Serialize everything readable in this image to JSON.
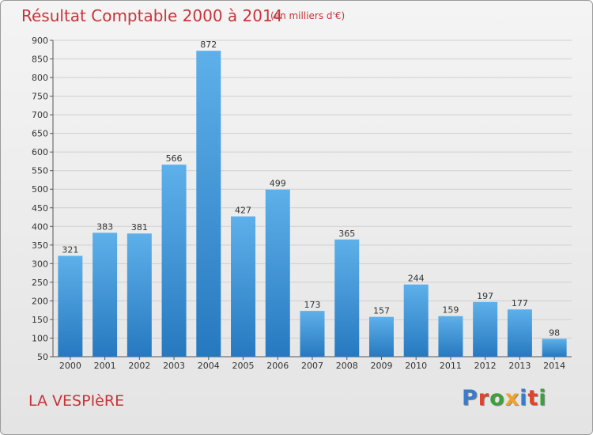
{
  "header": {
    "title": "Résultat Comptable 2000 à 2014",
    "subtitle": "(en milliers d'€)"
  },
  "footer": {
    "commune": "LA VESPIèRE",
    "logo_text": "Proxiti"
  },
  "colors": {
    "title": "#c8343a",
    "bar_top": "#5eb0ea",
    "bar_bottom": "#2679bf",
    "grid": "#cfcfcf",
    "logo_letters": [
      "#3a7ccc",
      "#e1442d",
      "#3da03a",
      "#f0a22b",
      "#3a7ccc",
      "#e1442d",
      "#3da03a"
    ]
  },
  "chart_data": {
    "type": "bar",
    "title": "Résultat Comptable 2000 à 2014",
    "categories": [
      "2000",
      "2001",
      "2002",
      "2003",
      "2004",
      "2005",
      "2006",
      "2007",
      "2008",
      "2009",
      "2010",
      "2011",
      "2012",
      "2013",
      "2014"
    ],
    "values": [
      321,
      383,
      381,
      566,
      872,
      427,
      499,
      173,
      365,
      157,
      244,
      159,
      197,
      177,
      98
    ],
    "ylim": [
      50,
      900
    ],
    "yticks": [
      50,
      100,
      150,
      200,
      250,
      300,
      350,
      400,
      450,
      500,
      550,
      600,
      650,
      700,
      750,
      800,
      850,
      900
    ],
    "grid": true
  }
}
